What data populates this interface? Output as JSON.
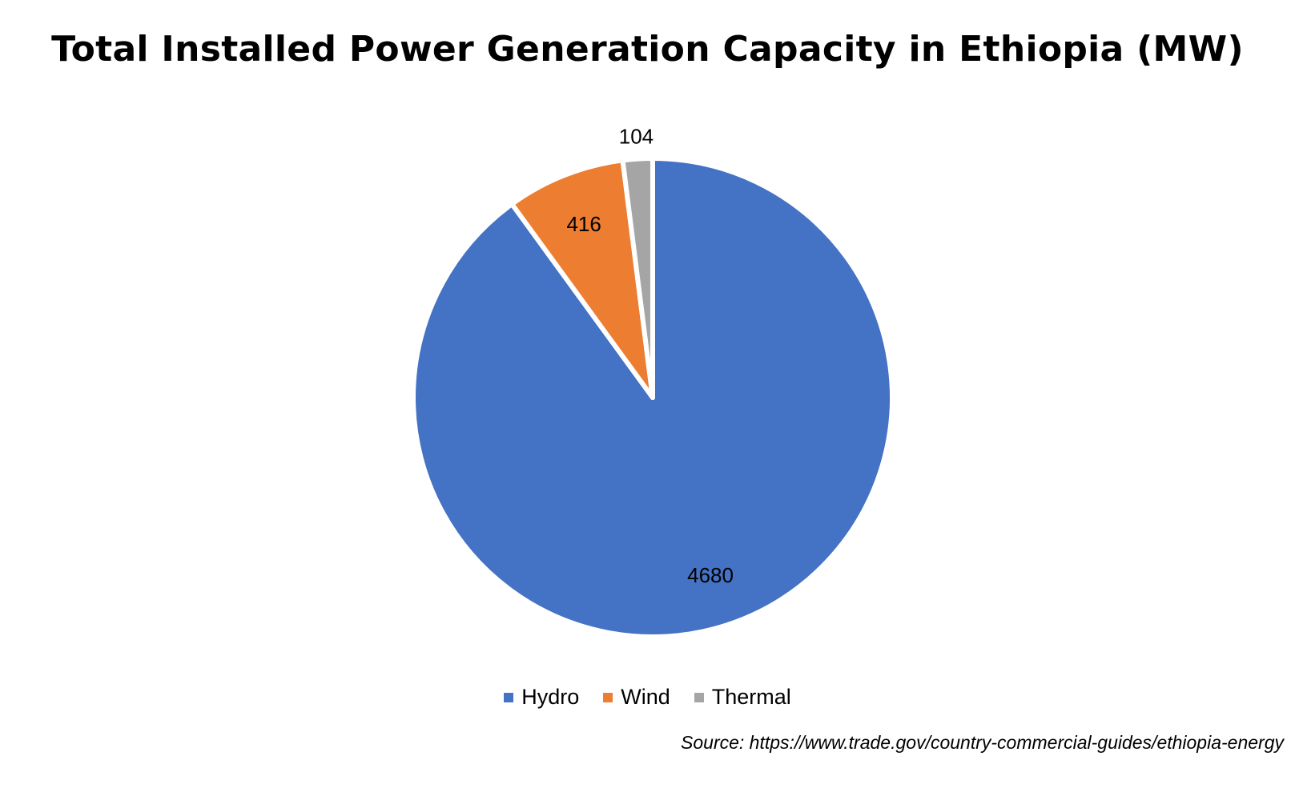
{
  "chart_data": {
    "type": "pie",
    "title": "Total Installed Power Generation Capacity in Ethiopia (MW)",
    "categories": [
      "Hydro",
      "Wind",
      "Thermal"
    ],
    "values": [
      4680,
      416,
      104
    ],
    "colors": [
      "#4472C4",
      "#ED7D31",
      "#A5A5A5"
    ],
    "legend_position": "bottom",
    "source": "Source: https://www.trade.gov/country-commercial-guides/ethiopia-energy"
  }
}
